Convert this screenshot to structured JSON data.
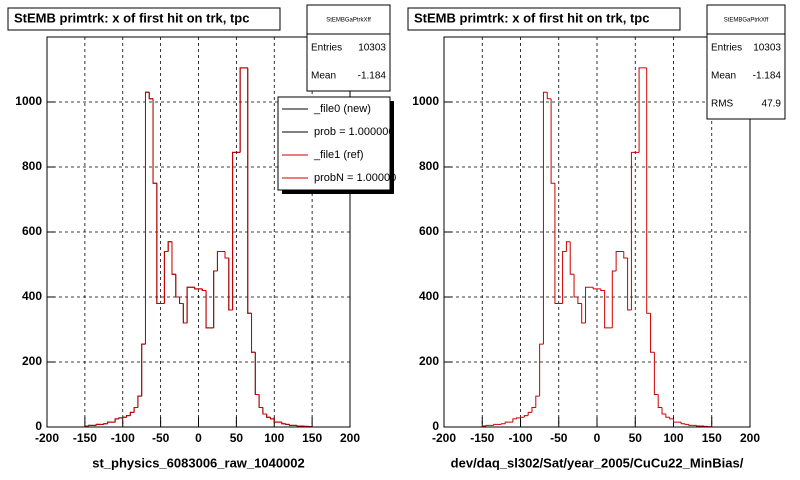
{
  "chart_data": [
    {
      "type": "histogram",
      "title": "StEMB primtrk: x of first hit on trk, tpc",
      "xlabel": "st_physics_6083006_raw_1040002",
      "bins": [
        -200,
        -195,
        -190,
        -185,
        -180,
        -175,
        -170,
        -165,
        -160,
        -155,
        -150,
        -145,
        -140,
        -135,
        -130,
        -125,
        -120,
        -115,
        -110,
        -105,
        -100,
        -95,
        -90,
        -85,
        -80,
        -75,
        -70,
        -65,
        -60,
        -55,
        -50,
        -45,
        -40,
        -35,
        -30,
        -25,
        -20,
        -15,
        -10,
        -5,
        0,
        5,
        10,
        15,
        20,
        25,
        30,
        35,
        40,
        45,
        50,
        55,
        60,
        65,
        70,
        75,
        80,
        85,
        90,
        95,
        100,
        105,
        110,
        115,
        120,
        125,
        130,
        135,
        140,
        145,
        150,
        155,
        160,
        165,
        170,
        175,
        180,
        185,
        190,
        195,
        200
      ],
      "series": [
        {
          "name": "_file0 (new)",
          "color": "#000000",
          "values": [
            0,
            0,
            0,
            0,
            0,
            0,
            0,
            0,
            0,
            0,
            3,
            5,
            5,
            8,
            8,
            10,
            15,
            15,
            25,
            28,
            30,
            35,
            45,
            60,
            95,
            255,
            1030,
            1010,
            750,
            380,
            380,
            540,
            570,
            470,
            400,
            380,
            320,
            430,
            430,
            425,
            425,
            420,
            305,
            305,
            480,
            540,
            540,
            520,
            360,
            845,
            845,
            1105,
            1105,
            350,
            230,
            100,
            60,
            40,
            30,
            25,
            15,
            15,
            10,
            8,
            5,
            5,
            3,
            3,
            2,
            1,
            0,
            0,
            0,
            0,
            0,
            0,
            0,
            0,
            0,
            0
          ]
        },
        {
          "name": "_file1 (ref)",
          "color": "#cc0000",
          "values": [
            0,
            0,
            0,
            0,
            0,
            0,
            0,
            0,
            0,
            0,
            3,
            5,
            5,
            8,
            8,
            10,
            15,
            15,
            25,
            28,
            30,
            35,
            45,
            60,
            95,
            255,
            1030,
            1010,
            750,
            380,
            380,
            540,
            570,
            470,
            400,
            380,
            320,
            430,
            430,
            425,
            425,
            420,
            305,
            305,
            480,
            540,
            540,
            520,
            360,
            845,
            845,
            1105,
            1105,
            350,
            230,
            100,
            60,
            40,
            30,
            25,
            15,
            15,
            10,
            8,
            5,
            5,
            3,
            3,
            2,
            1,
            0,
            0,
            0,
            0,
            0,
            0,
            0,
            0,
            0,
            0
          ]
        }
      ],
      "legend_notes": [
        "prob = 1.000000",
        "probN = 1.00000"
      ],
      "xlim": [
        -200,
        200
      ],
      "xticks": [
        -200,
        -150,
        -100,
        -50,
        0,
        50,
        100,
        150,
        200
      ],
      "ylim": [
        0,
        1200
      ],
      "yticks": [
        0,
        200,
        400,
        600,
        800,
        1000
      ],
      "grid": true,
      "stats": {
        "title": "StEMBGaPtrkXff",
        "rows": [
          {
            "label": "Entries",
            "value": 10303
          },
          {
            "label": "Mean",
            "value": -1.184
          }
        ]
      }
    },
    {
      "type": "histogram",
      "title": "StEMB primtrk: x of first hit on trk, tpc",
      "xlabel": "dev/daq_sl302/Sat/year_2005/CuCu22_MinBias/",
      "bins": [
        -200,
        -195,
        -190,
        -185,
        -180,
        -175,
        -170,
        -165,
        -160,
        -155,
        -150,
        -145,
        -140,
        -135,
        -130,
        -125,
        -120,
        -115,
        -110,
        -105,
        -100,
        -95,
        -90,
        -85,
        -80,
        -75,
        -70,
        -65,
        -60,
        -55,
        -50,
        -45,
        -40,
        -35,
        -30,
        -25,
        -20,
        -15,
        -10,
        -5,
        0,
        5,
        10,
        15,
        20,
        25,
        30,
        35,
        40,
        45,
        50,
        55,
        60,
        65,
        70,
        75,
        80,
        85,
        90,
        95,
        100,
        105,
        110,
        115,
        120,
        125,
        130,
        135,
        140,
        145,
        150,
        155,
        160,
        165,
        170,
        175,
        180,
        185,
        190,
        195,
        200
      ],
      "series": [
        {
          "color": "#cc0000",
          "values": [
            0,
            0,
            0,
            0,
            0,
            0,
            0,
            0,
            0,
            0,
            3,
            5,
            5,
            8,
            8,
            10,
            15,
            15,
            25,
            28,
            30,
            35,
            45,
            60,
            95,
            255,
            1030,
            1010,
            750,
            380,
            380,
            540,
            570,
            470,
            400,
            380,
            320,
            430,
            430,
            425,
            425,
            420,
            305,
            305,
            480,
            540,
            540,
            520,
            360,
            845,
            845,
            1105,
            1105,
            350,
            230,
            100,
            60,
            40,
            30,
            25,
            15,
            15,
            10,
            8,
            5,
            5,
            3,
            3,
            2,
            1,
            0,
            0,
            0,
            0,
            0,
            0,
            0,
            0,
            0,
            0
          ]
        }
      ],
      "xlim": [
        -200,
        200
      ],
      "xticks": [
        -200,
        -150,
        -100,
        -50,
        0,
        50,
        100,
        150,
        200
      ],
      "ylim": [
        0,
        1200
      ],
      "yticks": [
        0,
        200,
        400,
        600,
        800,
        1000
      ],
      "grid": true,
      "stats": {
        "title": "StEMBGaPtrkXff",
        "rows": [
          {
            "label": "Entries",
            "value": 10303
          },
          {
            "label": "Mean",
            "value": -1.184
          },
          {
            "label": "RMS",
            "value": 47.9
          }
        ]
      }
    }
  ]
}
